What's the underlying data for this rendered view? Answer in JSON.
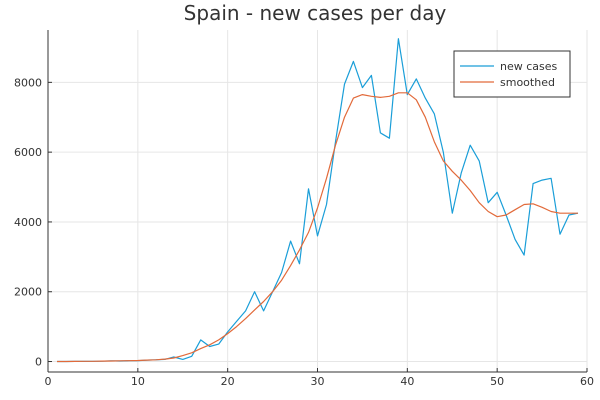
{
  "chart_data": {
    "type": "line",
    "title": "Spain - new cases per day",
    "xlabel": "",
    "ylabel": "",
    "xlim": [
      0,
      60
    ],
    "ylim": [
      -300,
      9500
    ],
    "xticks": [
      0,
      10,
      20,
      30,
      40,
      50,
      60
    ],
    "yticks": [
      0,
      2000,
      4000,
      6000,
      8000
    ],
    "grid": true,
    "legend_position": "top-right",
    "series": [
      {
        "name": "new cases",
        "color": "#1a9ed8",
        "x": [
          1,
          2,
          3,
          4,
          5,
          6,
          7,
          8,
          9,
          10,
          11,
          12,
          13,
          14,
          15,
          16,
          17,
          18,
          19,
          20,
          21,
          22,
          23,
          24,
          25,
          26,
          27,
          28,
          29,
          30,
          31,
          32,
          33,
          34,
          35,
          36,
          37,
          38,
          39,
          40,
          41,
          42,
          43,
          44,
          45,
          46,
          47,
          48,
          49,
          50,
          51,
          52,
          53,
          54,
          55,
          56,
          57,
          58,
          59
        ],
        "values": [
          0,
          2,
          5,
          5,
          8,
          10,
          20,
          15,
          25,
          25,
          40,
          50,
          60,
          130,
          60,
          150,
          620,
          430,
          500,
          850,
          1150,
          1450,
          2000,
          1450,
          2000,
          2550,
          3450,
          2800,
          4950,
          3600,
          4500,
          6300,
          7950,
          8600,
          7850,
          8200,
          6550,
          6400,
          9250,
          7650,
          8100,
          7550,
          7100,
          6000,
          4250,
          5400,
          6200,
          5750,
          4550,
          4850,
          4200,
          3500,
          3050,
          5100,
          5200,
          5250,
          3650,
          4200,
          4250
        ]
      },
      {
        "name": "smoothed",
        "color": "#e26a3a",
        "x": [
          1,
          2,
          3,
          4,
          5,
          6,
          7,
          8,
          9,
          10,
          11,
          12,
          13,
          14,
          15,
          16,
          17,
          18,
          19,
          20,
          21,
          22,
          23,
          24,
          25,
          26,
          27,
          28,
          29,
          30,
          31,
          32,
          33,
          34,
          35,
          36,
          37,
          38,
          39,
          40,
          41,
          42,
          43,
          44,
          45,
          46,
          47,
          48,
          49,
          50,
          51,
          52,
          53,
          54,
          55,
          56,
          57,
          58,
          59
        ],
        "values": [
          0,
          2,
          4,
          6,
          8,
          12,
          16,
          20,
          25,
          30,
          40,
          50,
          70,
          100,
          170,
          250,
          370,
          480,
          620,
          800,
          1000,
          1230,
          1480,
          1720,
          2000,
          2330,
          2750,
          3200,
          3700,
          4400,
          5250,
          6200,
          7000,
          7550,
          7650,
          7600,
          7570,
          7600,
          7700,
          7700,
          7500,
          7000,
          6300,
          5750,
          5450,
          5200,
          4900,
          4550,
          4300,
          4150,
          4200,
          4350,
          4500,
          4520,
          4420,
          4300,
          4250,
          4250,
          4250
        ]
      }
    ]
  }
}
